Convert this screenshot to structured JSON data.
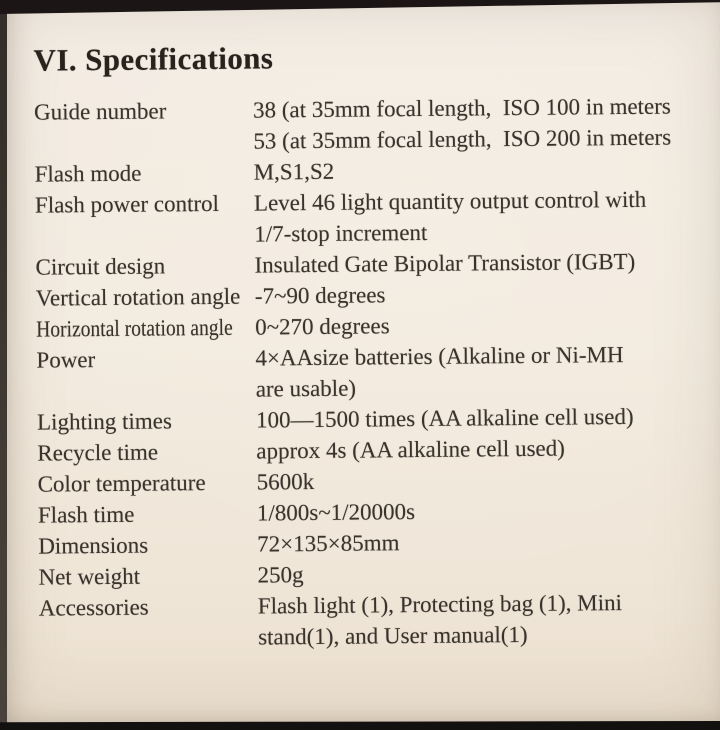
{
  "page": {
    "heading": "VI. Specifications",
    "colors": {
      "page_background": "#f2eadd",
      "ink": "#3a332c",
      "photo_border": "#171412"
    },
    "specs": {
      "rows": [
        {
          "label": "Guide number",
          "value": "38 (at 35mm focal length,  ISO 100 in meters\n53 (at 35mm focal length,  ISO 200 in meters"
        },
        {
          "label": "Flash mode",
          "value": "M,S1,S2"
        },
        {
          "label": "Flash power control",
          "value": "Level 46 light quantity output control with\n1/7-stop increment"
        },
        {
          "label": "Circuit design",
          "value": "Insulated Gate Bipolar Transistor (IGBT)"
        },
        {
          "label": "Vertical rotation angle",
          "value": "-7~90 degrees"
        },
        {
          "label": "Horizontal rotation angle",
          "value": "0~270 degrees"
        },
        {
          "label": "Power",
          "value": "4×AAsize batteries (Alkaline or Ni-MH\nare usable)"
        },
        {
          "label": "Lighting times",
          "value": "100—1500 times (AA alkaline cell used)"
        },
        {
          "label": "Recycle time",
          "value": "approx 4s (AA alkaline cell used)"
        },
        {
          "label": "Color temperature",
          "value": "5600k"
        },
        {
          "label": "Flash time",
          "value": "1/800s~1/20000s"
        },
        {
          "label": "Dimensions",
          "value": "72×135×85mm"
        },
        {
          "label": "Net weight",
          "value": "250g"
        },
        {
          "label": "Accessories",
          "value": "Flash light (1), Protecting bag (1), Mini\nstand(1), and User manual(1)"
        }
      ]
    }
  }
}
